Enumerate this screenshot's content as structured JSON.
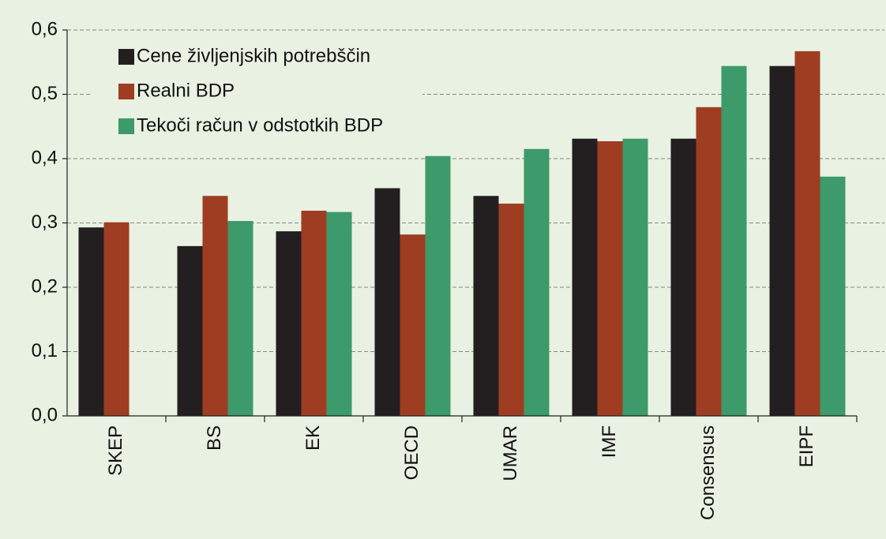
{
  "chart_data": {
    "type": "bar",
    "categories": [
      "SKEP",
      "BS",
      "EK",
      "OECD",
      "UMAR",
      "IMF",
      "Consensus",
      "EIPF"
    ],
    "series": [
      {
        "name": "Cene življenjskih potrebščin",
        "color": "#231f20",
        "values": [
          0.293,
          0.264,
          0.287,
          0.354,
          0.342,
          0.431,
          0.431,
          0.544
        ]
      },
      {
        "name": "Realni BDP",
        "color": "#9e3d22",
        "values": [
          0.301,
          0.342,
          0.319,
          0.282,
          0.33,
          0.427,
          0.48,
          0.567
        ]
      },
      {
        "name": "Tekoči račun v odstotkih BDP",
        "color": "#3d9a6a",
        "values": [
          null,
          0.303,
          0.317,
          0.404,
          0.415,
          0.431,
          0.544,
          0.372
        ]
      }
    ],
    "ylim": [
      0,
      0.6
    ],
    "yticks": [
      {
        "value": 0,
        "label": "0,0"
      },
      {
        "value": 0.1,
        "label": "0,1"
      },
      {
        "value": 0.2,
        "label": "0,2"
      },
      {
        "value": 0.3,
        "label": "0,3"
      },
      {
        "value": 0.4,
        "label": "0,4"
      },
      {
        "value": 0.5,
        "label": "0,5"
      },
      {
        "value": 0.6,
        "label": "0,6"
      }
    ],
    "grid": true,
    "legend": "upper left"
  }
}
